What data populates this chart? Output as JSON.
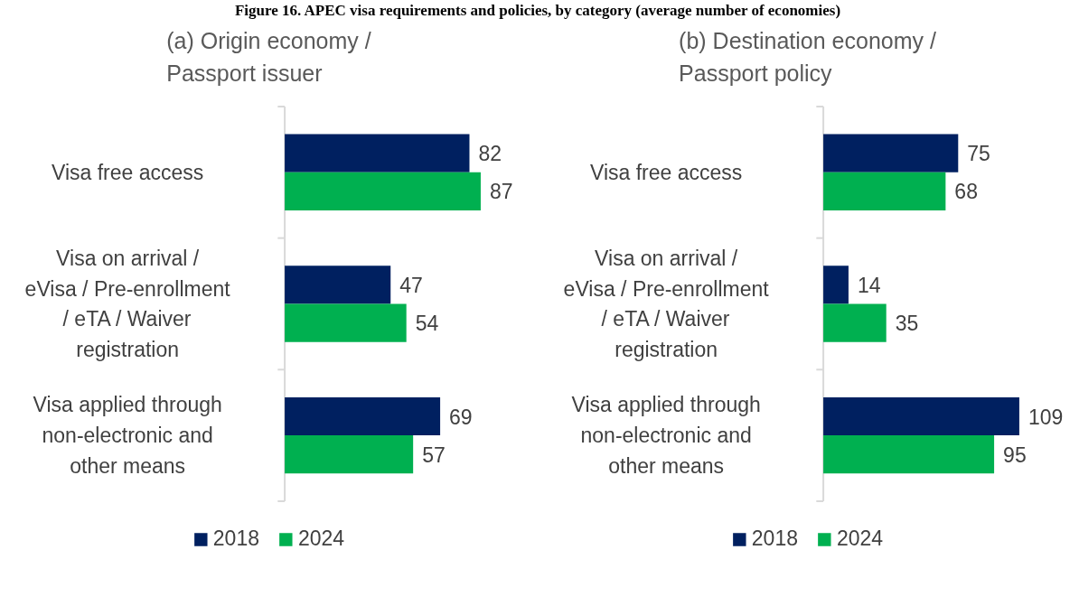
{
  "chart_data": [
    {
      "type": "bar",
      "orientation": "horizontal",
      "title": "(a) Origin economy / Passport issuer",
      "annotations": [
        "Figure 16. APEC visa requirements and policies, by category (average number of economies)"
      ],
      "categories": [
        "Visa free access",
        "Visa on arrival / eVisa / Pre-enrollment / eTA / Waiver registration",
        "Visa applied through non-electronic and other means"
      ],
      "series": [
        {
          "name": "2018",
          "color": "#002060",
          "values": [
            82,
            47,
            69
          ]
        },
        {
          "name": "2024",
          "color": "#00b050",
          "values": [
            87,
            54,
            57
          ]
        }
      ],
      "data_labels": true,
      "legend": "bottom",
      "grid": false
    },
    {
      "type": "bar",
      "orientation": "horizontal",
      "title": "(b) Destination economy / Passport policy",
      "categories": [
        "Visa free access",
        "Visa on arrival / eVisa / Pre-enrollment / eTA / Waiver registration",
        "Visa applied through non-electronic and other means"
      ],
      "series": [
        {
          "name": "2018",
          "color": "#002060",
          "values": [
            75,
            14,
            109
          ]
        },
        {
          "name": "2024",
          "color": "#00b050",
          "values": [
            68,
            35,
            95
          ]
        }
      ],
      "data_labels": true,
      "legend": "bottom",
      "grid": false
    }
  ]
}
